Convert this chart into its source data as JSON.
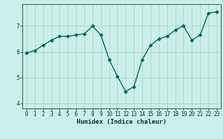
{
  "x": [
    0,
    1,
    2,
    3,
    4,
    5,
    6,
    7,
    8,
    9,
    10,
    11,
    12,
    13,
    14,
    15,
    16,
    17,
    18,
    19,
    20,
    21,
    22,
    23
  ],
  "y": [
    5.95,
    6.05,
    6.25,
    6.45,
    6.6,
    6.6,
    6.65,
    6.7,
    7.0,
    6.65,
    5.7,
    5.05,
    4.45,
    4.65,
    5.7,
    6.25,
    6.5,
    6.6,
    6.85,
    7.0,
    6.45,
    6.65,
    7.5,
    7.55
  ],
  "xlabel": "Humidex (Indice chaleur)",
  "background_color": "#cceee8",
  "grid_color": "#aaddcc",
  "line_color": "#006655",
  "marker_color": "#006655",
  "yticks": [
    4,
    5,
    6,
    7
  ],
  "ylim": [
    3.8,
    7.85
  ],
  "xlim": [
    -0.5,
    23.5
  ]
}
